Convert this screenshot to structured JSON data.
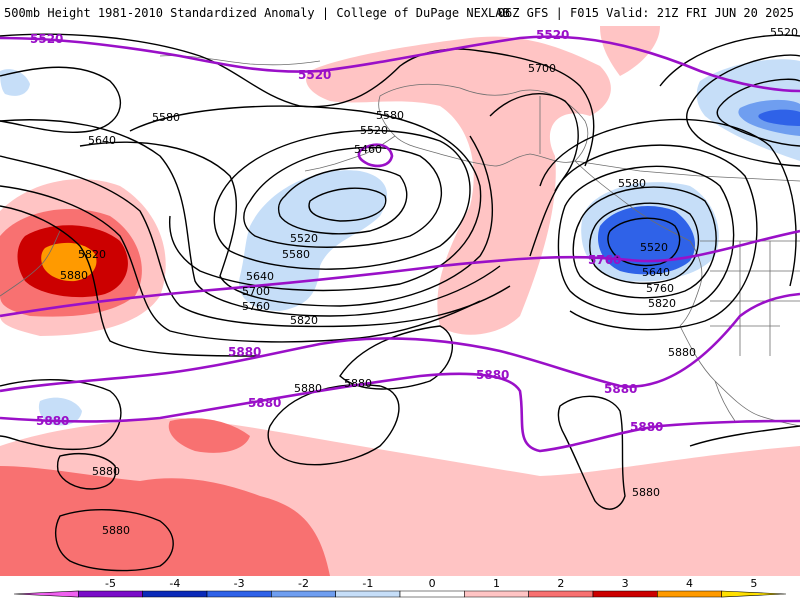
{
  "header": {
    "title": "500mb Height 1981-2010 Standardized Anomaly | College of DuPage NEXLAB",
    "run_info": "06Z GFS | F015 Valid: 21Z FRI JUN 20 2025"
  },
  "map": {
    "field": "500mb height standardized anomaly",
    "colors": {
      "land_outline": "#6e6e6e",
      "contour_black": "#000000",
      "contour_purple": "#9a10c8",
      "pos1": "#ffc4c4",
      "pos2": "#f87171",
      "pos3": "#cc0000",
      "pos4": "#ff9a00",
      "neg1": "#c6def8",
      "neg2": "#6f9ef0",
      "neg3": "#2f62e8"
    },
    "contour_labels_black": [
      {
        "id": "l5580a",
        "text": "5580"
      },
      {
        "id": "l5640a",
        "text": "5640"
      },
      {
        "id": "l5580b",
        "text": "5580"
      },
      {
        "id": "l5520b",
        "text": "5520"
      },
      {
        "id": "l5460",
        "text": "5460"
      },
      {
        "id": "l5700a",
        "text": "5700"
      },
      {
        "id": "l5520c",
        "text": "5520"
      },
      {
        "id": "l5580c",
        "text": "5580"
      },
      {
        "id": "l5640b",
        "text": "5640"
      },
      {
        "id": "l5700b",
        "text": "5700"
      },
      {
        "id": "l5760a",
        "text": "5760"
      },
      {
        "id": "l5820a",
        "text": "5820"
      },
      {
        "id": "l5820b",
        "text": "5820"
      },
      {
        "id": "l5880a",
        "text": "5880"
      },
      {
        "id": "l5580d",
        "text": "5580"
      },
      {
        "id": "l5520d",
        "text": "5520"
      },
      {
        "id": "l5640c",
        "text": "5640"
      },
      {
        "id": "l5760b",
        "text": "5760"
      },
      {
        "id": "l5820c",
        "text": "5820"
      },
      {
        "id": "l5880b",
        "text": "5880"
      },
      {
        "id": "l5880c",
        "text": "5880"
      },
      {
        "id": "l5880d",
        "text": "5880"
      },
      {
        "id": "l5880e",
        "text": "5880"
      },
      {
        "id": "l5880f",
        "text": "5880"
      },
      {
        "id": "l5880g",
        "text": "5880"
      },
      {
        "id": "l5520e",
        "text": "5520"
      }
    ],
    "contour_labels_purple": [
      {
        "id": "p5520a",
        "text": "5520"
      },
      {
        "id": "p5520b",
        "text": "5520"
      },
      {
        "id": "p5520c",
        "text": "5520"
      },
      {
        "id": "p5760",
        "text": "5760"
      },
      {
        "id": "p5880a",
        "text": "5880"
      },
      {
        "id": "p5880b",
        "text": "5880"
      },
      {
        "id": "p5880c",
        "text": "5880"
      },
      {
        "id": "p5880d",
        "text": "5880"
      },
      {
        "id": "p5880e",
        "text": "5880"
      },
      {
        "id": "p5880f",
        "text": "5880"
      }
    ]
  },
  "colorbar": {
    "ticks": [
      "-5",
      "-4",
      "-3",
      "-2",
      "-1",
      "0",
      "1",
      "2",
      "3",
      "4",
      "5"
    ],
    "bins": [
      {
        "from": -6,
        "to": -5,
        "color": "#f060f0"
      },
      {
        "from": -5,
        "to": -4,
        "color": "#7a0cc8"
      },
      {
        "from": -4,
        "to": -3,
        "color": "#0a2ab8"
      },
      {
        "from": -3,
        "to": -2,
        "color": "#2f62e8"
      },
      {
        "from": -2,
        "to": -1,
        "color": "#6f9ef0"
      },
      {
        "from": -1,
        "to": 0,
        "color": "#c6def8"
      },
      {
        "from": 0,
        "to": 1,
        "color": "#ffffff"
      },
      {
        "from": 1,
        "to": 2,
        "color": "#ffc4c4"
      },
      {
        "from": 2,
        "to": 3,
        "color": "#f87171"
      },
      {
        "from": 3,
        "to": 4,
        "color": "#cc0000"
      },
      {
        "from": 4,
        "to": 5,
        "color": "#ff9a00"
      },
      {
        "from": 5,
        "to": 6,
        "color": "#ffe000"
      }
    ]
  }
}
